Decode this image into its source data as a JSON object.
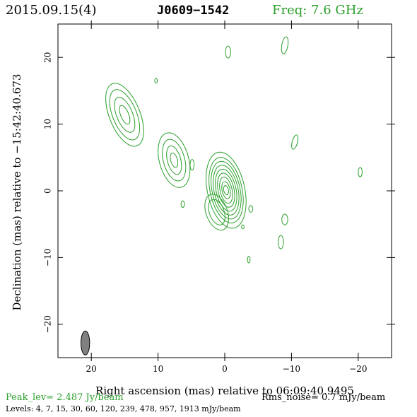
{
  "header": {
    "date": "2015.09.15(4)",
    "source": "J0609−1542",
    "frequency": "Freq: 7.6 GHz"
  },
  "footer": {
    "peak": "Peak_lev=  2.487 Jy/beam",
    "rms": "Rms_noise=  0.7 mJy/beam",
    "levels": "Levels:   4,   7,  15,  30,  60, 120, 239, 478, 957, 1913 mJy/beam"
  },
  "colors": {
    "contour": "#2ca02c",
    "beam_fill": "#808080",
    "axis": "#000000",
    "header_freq": "#2ca02c"
  },
  "chart_data": {
    "type": "contour",
    "title": "",
    "xlabel": "Right ascension (mas) relative to 06:09:40.9495",
    "ylabel": "Declination (mas) relative to −15:42:40.673",
    "xlim": [
      25,
      -25
    ],
    "ylim": [
      -25,
      25
    ],
    "xticks": [
      20,
      10,
      0,
      -10,
      -20
    ],
    "yticks": [
      20,
      10,
      0,
      -10,
      -20
    ],
    "xtick_labels": [
      "20",
      "10",
      "0",
      "−10",
      "−20"
    ],
    "ytick_labels": [
      "20",
      "10",
      "0",
      "−10",
      "−20"
    ],
    "contour_levels_mJy": [
      4,
      7,
      15,
      30,
      60,
      120,
      239,
      478,
      957,
      1913
    ],
    "peak_Jy_per_beam": 2.487,
    "rms_mJy_per_beam": 0.7,
    "beam": {
      "x": 20.9,
      "y": -22.8,
      "major": 3.6,
      "minor": 1.3,
      "pa_deg": 0
    },
    "components": [
      {
        "name": "core",
        "x": -0.2,
        "y": 0.1,
        "contours": [
          {
            "rx": 2.8,
            "ry": 5.8,
            "rot": -12
          },
          {
            "rx": 2.4,
            "ry": 5.0,
            "rot": -12
          },
          {
            "rx": 2.1,
            "ry": 4.4,
            "rot": -12
          },
          {
            "rx": 1.8,
            "ry": 3.8,
            "rot": -12
          },
          {
            "rx": 1.5,
            "ry": 3.2,
            "rot": -12
          },
          {
            "rx": 1.2,
            "ry": 2.6,
            "rot": -12
          },
          {
            "rx": 0.9,
            "ry": 2.0,
            "rot": -12
          },
          {
            "rx": 0.6,
            "ry": 1.3,
            "rot": -12
          },
          {
            "rx": 0.35,
            "ry": 0.7,
            "rot": -12
          }
        ]
      },
      {
        "name": "core-tail",
        "x": 1.2,
        "y": -3.2,
        "contours": [
          {
            "rx": 1.6,
            "ry": 2.8,
            "rot": -20
          },
          {
            "rx": 1.1,
            "ry": 2.0,
            "rot": -20
          }
        ]
      },
      {
        "name": "jet-knot-inner",
        "x": 7.6,
        "y": 4.6,
        "contours": [
          {
            "rx": 2.2,
            "ry": 4.2,
            "rot": -15
          },
          {
            "rx": 1.6,
            "ry": 3.2,
            "rot": -15
          },
          {
            "rx": 1.0,
            "ry": 2.2,
            "rot": -15
          },
          {
            "rx": 0.5,
            "ry": 1.1,
            "rot": -15
          }
        ]
      },
      {
        "name": "jet-knot-outer",
        "x": 15.0,
        "y": 11.4,
        "contours": [
          {
            "rx": 2.3,
            "ry": 5.0,
            "rot": -22
          },
          {
            "rx": 1.8,
            "ry": 4.0,
            "rot": -22
          },
          {
            "rx": 1.2,
            "ry": 2.8,
            "rot": -22
          },
          {
            "rx": 0.6,
            "ry": 1.5,
            "rot": -22
          }
        ]
      },
      {
        "name": "blob-a",
        "x": -0.5,
        "y": 20.8,
        "contours": [
          {
            "rx": 0.4,
            "ry": 0.9,
            "rot": 0
          }
        ]
      },
      {
        "name": "blob-b",
        "x": -9.0,
        "y": 21.8,
        "contours": [
          {
            "rx": 0.45,
            "ry": 1.3,
            "rot": 10
          }
        ]
      },
      {
        "name": "blob-c",
        "x": 10.3,
        "y": 16.5,
        "contours": [
          {
            "rx": 0.2,
            "ry": 0.35,
            "rot": 0
          }
        ]
      },
      {
        "name": "blob-d",
        "x": -10.5,
        "y": 7.3,
        "contours": [
          {
            "rx": 0.4,
            "ry": 1.1,
            "rot": 15
          }
        ]
      },
      {
        "name": "blob-e",
        "x": -20.3,
        "y": 2.8,
        "contours": [
          {
            "rx": 0.3,
            "ry": 0.7,
            "rot": 0
          }
        ]
      },
      {
        "name": "blob-f",
        "x": 4.9,
        "y": 3.9,
        "contours": [
          {
            "rx": 0.3,
            "ry": 0.8,
            "rot": 0
          }
        ]
      },
      {
        "name": "blob-g",
        "x": 6.3,
        "y": -2.0,
        "contours": [
          {
            "rx": 0.25,
            "ry": 0.5,
            "rot": 0
          }
        ]
      },
      {
        "name": "blob-h",
        "x": -3.9,
        "y": -2.7,
        "contours": [
          {
            "rx": 0.3,
            "ry": 0.5,
            "rot": 0
          }
        ]
      },
      {
        "name": "blob-i",
        "x": -9.0,
        "y": -4.3,
        "contours": [
          {
            "rx": 0.45,
            "ry": 0.8,
            "rot": 0
          }
        ]
      },
      {
        "name": "blob-j",
        "x": -2.7,
        "y": -5.4,
        "contours": [
          {
            "rx": 0.2,
            "ry": 0.3,
            "rot": 0
          }
        ]
      },
      {
        "name": "blob-k",
        "x": -8.4,
        "y": -7.7,
        "contours": [
          {
            "rx": 0.4,
            "ry": 1.0,
            "rot": 0
          }
        ]
      },
      {
        "name": "blob-l",
        "x": -3.6,
        "y": -10.3,
        "contours": [
          {
            "rx": 0.2,
            "ry": 0.5,
            "rot": 0
          }
        ]
      }
    ]
  }
}
